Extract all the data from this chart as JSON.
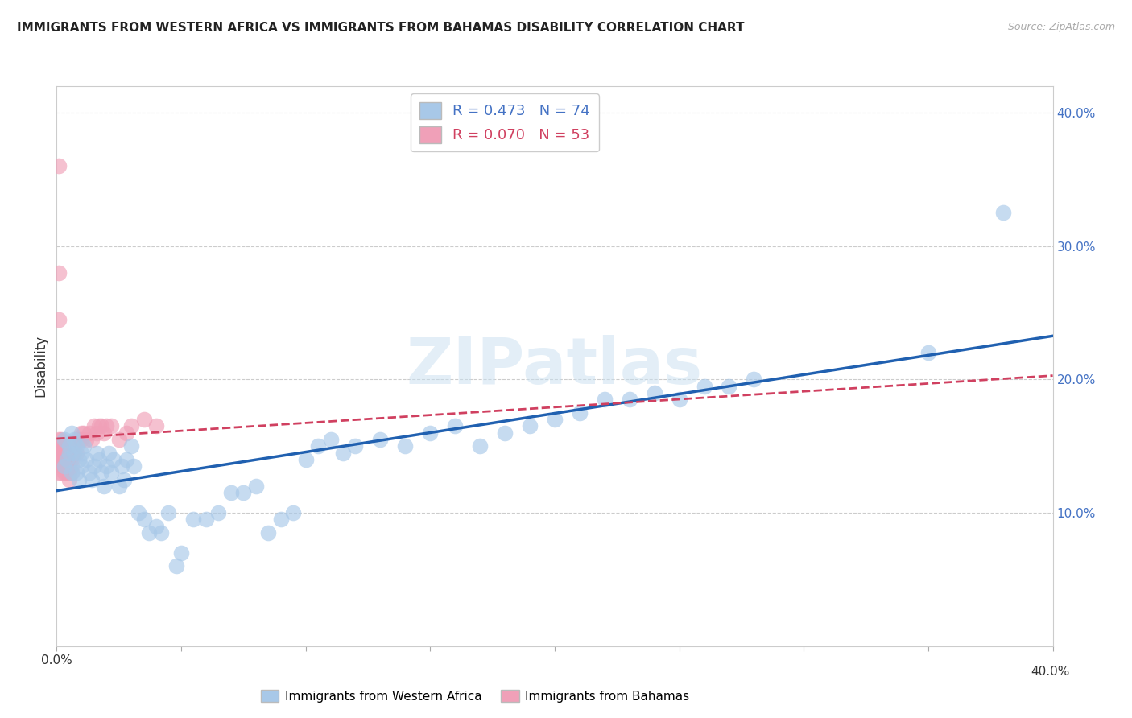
{
  "title": "IMMIGRANTS FROM WESTERN AFRICA VS IMMIGRANTS FROM BAHAMAS DISABILITY CORRELATION CHART",
  "source": "Source: ZipAtlas.com",
  "ylabel": "Disability",
  "xlim": [
    0.0,
    0.4
  ],
  "ylim": [
    0.0,
    0.42
  ],
  "ytick_labels": [
    "10.0%",
    "20.0%",
    "30.0%",
    "40.0%"
  ],
  "ytick_values": [
    0.1,
    0.2,
    0.3,
    0.4
  ],
  "blue_R": 0.473,
  "blue_N": 74,
  "pink_R": 0.07,
  "pink_N": 53,
  "blue_color": "#A8C8E8",
  "pink_color": "#F0A0B8",
  "blue_line_color": "#2060B0",
  "pink_line_color": "#D04060",
  "watermark": "ZIPatlas",
  "legend_label_blue": "Immigrants from Western Africa",
  "legend_label_pink": "Immigrants from Bahamas",
  "blue_scatter_x": [
    0.003,
    0.003,
    0.004,
    0.005,
    0.005,
    0.006,
    0.006,
    0.007,
    0.007,
    0.008,
    0.008,
    0.009,
    0.009,
    0.01,
    0.01,
    0.011,
    0.012,
    0.013,
    0.014,
    0.015,
    0.016,
    0.017,
    0.018,
    0.019,
    0.02,
    0.021,
    0.022,
    0.023,
    0.025,
    0.026,
    0.027,
    0.028,
    0.03,
    0.031,
    0.033,
    0.035,
    0.037,
    0.04,
    0.042,
    0.045,
    0.048,
    0.05,
    0.055,
    0.06,
    0.065,
    0.07,
    0.075,
    0.08,
    0.085,
    0.09,
    0.095,
    0.1,
    0.105,
    0.11,
    0.115,
    0.12,
    0.13,
    0.14,
    0.15,
    0.16,
    0.17,
    0.18,
    0.19,
    0.2,
    0.21,
    0.22,
    0.23,
    0.24,
    0.25,
    0.26,
    0.27,
    0.28,
    0.35,
    0.38
  ],
  "blue_scatter_y": [
    0.155,
    0.135,
    0.14,
    0.15,
    0.145,
    0.13,
    0.16,
    0.145,
    0.155,
    0.13,
    0.15,
    0.14,
    0.125,
    0.135,
    0.145,
    0.15,
    0.14,
    0.13,
    0.125,
    0.135,
    0.145,
    0.14,
    0.13,
    0.12,
    0.135,
    0.145,
    0.13,
    0.14,
    0.12,
    0.135,
    0.125,
    0.14,
    0.15,
    0.135,
    0.1,
    0.095,
    0.085,
    0.09,
    0.085,
    0.1,
    0.06,
    0.07,
    0.095,
    0.095,
    0.1,
    0.115,
    0.115,
    0.12,
    0.085,
    0.095,
    0.1,
    0.14,
    0.15,
    0.155,
    0.145,
    0.15,
    0.155,
    0.15,
    0.16,
    0.165,
    0.15,
    0.16,
    0.165,
    0.17,
    0.175,
    0.185,
    0.185,
    0.19,
    0.185,
    0.195,
    0.195,
    0.2,
    0.22,
    0.325
  ],
  "pink_scatter_x": [
    0.001,
    0.001,
    0.001,
    0.001,
    0.001,
    0.002,
    0.002,
    0.002,
    0.002,
    0.002,
    0.002,
    0.003,
    0.003,
    0.003,
    0.003,
    0.003,
    0.004,
    0.004,
    0.004,
    0.005,
    0.005,
    0.005,
    0.005,
    0.005,
    0.006,
    0.006,
    0.006,
    0.007,
    0.007,
    0.008,
    0.008,
    0.009,
    0.01,
    0.01,
    0.011,
    0.012,
    0.013,
    0.014,
    0.015,
    0.016,
    0.017,
    0.018,
    0.019,
    0.02,
    0.022,
    0.025,
    0.028,
    0.03,
    0.035,
    0.04,
    0.001,
    0.001,
    0.001
  ],
  "pink_scatter_y": [
    0.13,
    0.14,
    0.145,
    0.15,
    0.155,
    0.13,
    0.135,
    0.14,
    0.145,
    0.15,
    0.155,
    0.13,
    0.135,
    0.14,
    0.145,
    0.15,
    0.13,
    0.135,
    0.14,
    0.125,
    0.13,
    0.135,
    0.14,
    0.15,
    0.13,
    0.135,
    0.14,
    0.145,
    0.15,
    0.145,
    0.155,
    0.155,
    0.155,
    0.16,
    0.16,
    0.155,
    0.16,
    0.155,
    0.165,
    0.16,
    0.165,
    0.165,
    0.16,
    0.165,
    0.165,
    0.155,
    0.16,
    0.165,
    0.17,
    0.165,
    0.245,
    0.28,
    0.36
  ]
}
